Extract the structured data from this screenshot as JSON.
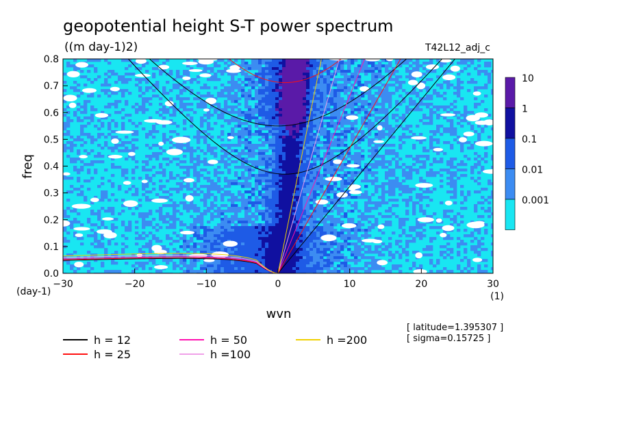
{
  "chart_data": {
    "type": "heatmap",
    "title": "geopotential height S-T power spectrum",
    "subtitle": "((m day-1)2)",
    "run_label": "T42L12_adj_c",
    "xlabel": "wvn",
    "ylabel": "freq",
    "x_unit": "(1)",
    "y_unit": "(day-1)",
    "xlim": [
      -30,
      30
    ],
    "ylim": [
      0,
      0.8
    ],
    "x_ticks": [
      -30,
      -20,
      -10,
      0,
      10,
      20,
      30
    ],
    "y_ticks": [
      0.0,
      0.1,
      0.2,
      0.3,
      0.4,
      0.5,
      0.6,
      0.7,
      0.8
    ],
    "colorbar": {
      "labels": [
        "10",
        "1",
        "0.1",
        "0.01",
        "0.001"
      ],
      "colors": [
        "#5a1aa8",
        "#1010a0",
        "#1e5be6",
        "#3c8cf2",
        "#19e6f2"
      ]
    },
    "dispersion_curves": [
      {
        "label": "h = 12",
        "h": 12,
        "color": "#000000"
      },
      {
        "label": "h = 25",
        "h": 25,
        "color": "#ff1010"
      },
      {
        "label": "h = 50",
        "h": 50,
        "color": "#ff10b0"
      },
      {
        "label": "h =100",
        "h": 100,
        "color": "#f0a0e8"
      },
      {
        "label": "h =200",
        "h": 200,
        "color": "#f0d000"
      }
    ],
    "info": [
      "[ latitude=1.395307 ]",
      "[ sigma=0.15725 ]"
    ]
  }
}
